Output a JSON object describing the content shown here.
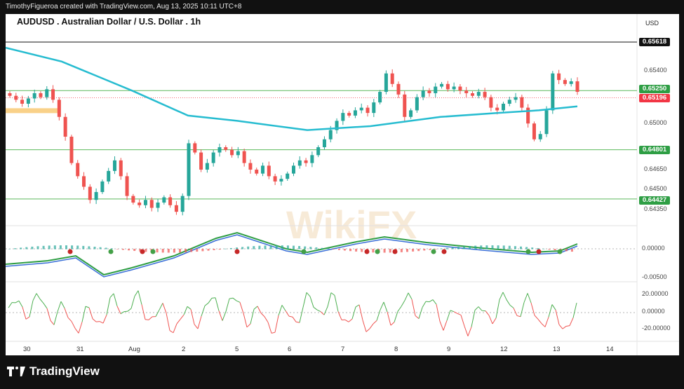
{
  "header": "TimothyFigueroa created with TradingView.com, Aug 13, 2025 10:11 UTC+8",
  "title": "AUDUSD . Australian Dollar / U.S. Dollar . 1h",
  "currency": "USD",
  "watermark": "WikiFX",
  "brand": "TradingView",
  "price_tags": [
    {
      "label": "0.65618",
      "color": "#111111"
    },
    {
      "label": "0.65250",
      "color": "#2e9e44"
    },
    {
      "label": "0.65196",
      "color": "#f23645"
    },
    {
      "label": "0.64801",
      "color": "#2e9e44"
    },
    {
      "label": "0.64427",
      "color": "#2e9e44"
    }
  ],
  "chart_data": {
    "type": "candlestick",
    "price_axis_ticks": [
      "0.65400",
      "0.65000",
      "0.64650",
      "0.64500",
      "0.64350"
    ],
    "macd_axis_ticks": [
      "0.00000",
      "-0.00500"
    ],
    "osc_axis_ticks": [
      "20.00000",
      "0.00000",
      "-20.00000"
    ],
    "x_labels": [
      "30",
      "31",
      "Aug",
      "2",
      "5",
      "6",
      "7",
      "8",
      "9",
      "12",
      "13",
      "14"
    ],
    "horizontal_levels": [
      0.65618,
      0.6525,
      0.64801,
      0.64427
    ],
    "last_price": 0.65196,
    "colors": {
      "up": "#26a69a",
      "down": "#ef5350",
      "ma": "#26bcd0",
      "level": "#5cb85c"
    }
  }
}
